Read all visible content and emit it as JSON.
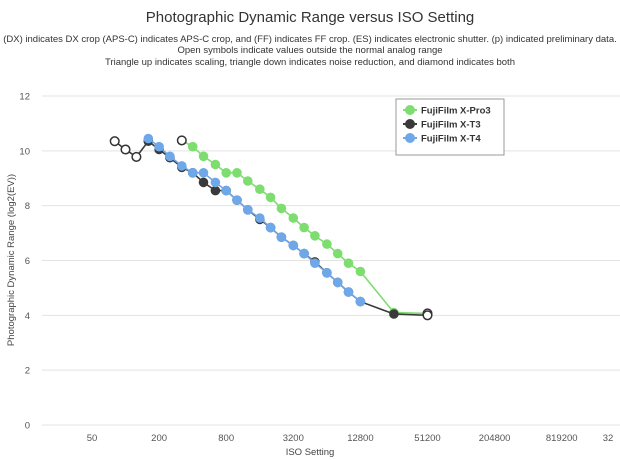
{
  "chart_data": {
    "type": "line",
    "title": "Photographic Dynamic Range versus ISO Setting",
    "subtitle": [
      "(DX) indicates DX crop (APS-C) indicates APS-C crop, and (FF) indicates FF crop. (ES) indicates electronic shutter. (p) indicated preliminary data.",
      "Open symbols indicate values outside the normal analog range",
      "Triangle up indicates scaling, triangle down indicates noise reduction, and diamond indicates both"
    ],
    "xlabel": "ISO Setting",
    "ylabel": "Photographic Dynamic Range (log2(EV))",
    "x_scale": "log2",
    "x_ticks": [
      "50",
      "200",
      "800",
      "3200",
      "12800",
      "51200",
      "204800",
      "819200",
      "32"
    ],
    "y_ticks": [
      0,
      2,
      4,
      6,
      8,
      10,
      12
    ],
    "ylim": [
      0,
      12
    ],
    "grid": true,
    "legend_position": "top-right",
    "series": [
      {
        "name": "FujiFilm X-Pro3",
        "color": "#7ddd6f",
        "points": [
          {
            "x": 320,
            "y": 10.38,
            "open": true
          },
          {
            "x": 400,
            "y": 10.15
          },
          {
            "x": 500,
            "y": 9.8
          },
          {
            "x": 640,
            "y": 9.5
          },
          {
            "x": 800,
            "y": 9.2
          },
          {
            "x": 1000,
            "y": 9.2
          },
          {
            "x": 1250,
            "y": 8.9
          },
          {
            "x": 1600,
            "y": 8.6
          },
          {
            "x": 2000,
            "y": 8.3
          },
          {
            "x": 2500,
            "y": 7.9
          },
          {
            "x": 3200,
            "y": 7.55
          },
          {
            "x": 4000,
            "y": 7.2
          },
          {
            "x": 5000,
            "y": 6.9
          },
          {
            "x": 6400,
            "y": 6.6
          },
          {
            "x": 8000,
            "y": 6.25
          },
          {
            "x": 10000,
            "y": 5.9
          },
          {
            "x": 12800,
            "y": 5.6
          },
          {
            "x": 25600,
            "y": 4.1
          },
          {
            "x": 51200,
            "y": 4.07,
            "open": true
          }
        ]
      },
      {
        "name": "FujiFilm X-T3",
        "color": "#3a3a3a",
        "points": [
          {
            "x": 80,
            "y": 10.35,
            "open": true
          },
          {
            "x": 100,
            "y": 10.05,
            "open": true
          },
          {
            "x": 125,
            "y": 9.78,
            "open": true
          },
          {
            "x": 160,
            "y": 10.35
          },
          {
            "x": 200,
            "y": 10.05
          },
          {
            "x": 250,
            "y": 9.75
          },
          {
            "x": 320,
            "y": 9.4
          },
          {
            "x": 400,
            "y": 9.2
          },
          {
            "x": 500,
            "y": 8.85
          },
          {
            "x": 640,
            "y": 8.55
          },
          {
            "x": 800,
            "y": 8.55
          },
          {
            "x": 1000,
            "y": 8.2
          },
          {
            "x": 1250,
            "y": 7.85
          },
          {
            "x": 1600,
            "y": 7.5
          },
          {
            "x": 2000,
            "y": 7.2
          },
          {
            "x": 2500,
            "y": 6.85
          },
          {
            "x": 3200,
            "y": 6.55
          },
          {
            "x": 4000,
            "y": 6.25
          },
          {
            "x": 5000,
            "y": 5.95
          },
          {
            "x": 6400,
            "y": 5.55
          },
          {
            "x": 8000,
            "y": 5.2
          },
          {
            "x": 10000,
            "y": 4.85
          },
          {
            "x": 12800,
            "y": 4.5
          },
          {
            "x": 25600,
            "y": 4.05
          },
          {
            "x": 51200,
            "y": 4.0,
            "open": true
          }
        ]
      },
      {
        "name": "FujiFilm X-T4",
        "color": "#6fa8e8",
        "points": [
          {
            "x": 160,
            "y": 10.45
          },
          {
            "x": 200,
            "y": 10.15
          },
          {
            "x": 250,
            "y": 9.8
          },
          {
            "x": 320,
            "y": 9.45
          },
          {
            "x": 400,
            "y": 9.2
          },
          {
            "x": 500,
            "y": 9.2
          },
          {
            "x": 640,
            "y": 8.85
          },
          {
            "x": 800,
            "y": 8.55
          },
          {
            "x": 1000,
            "y": 8.2
          },
          {
            "x": 1250,
            "y": 7.85
          },
          {
            "x": 1600,
            "y": 7.55
          },
          {
            "x": 2000,
            "y": 7.2
          },
          {
            "x": 2500,
            "y": 6.85
          },
          {
            "x": 3200,
            "y": 6.55
          },
          {
            "x": 4000,
            "y": 6.25
          },
          {
            "x": 5000,
            "y": 5.9
          },
          {
            "x": 6400,
            "y": 5.55
          },
          {
            "x": 8000,
            "y": 5.2
          },
          {
            "x": 10000,
            "y": 4.85
          },
          {
            "x": 12800,
            "y": 4.5
          }
        ]
      }
    ]
  }
}
